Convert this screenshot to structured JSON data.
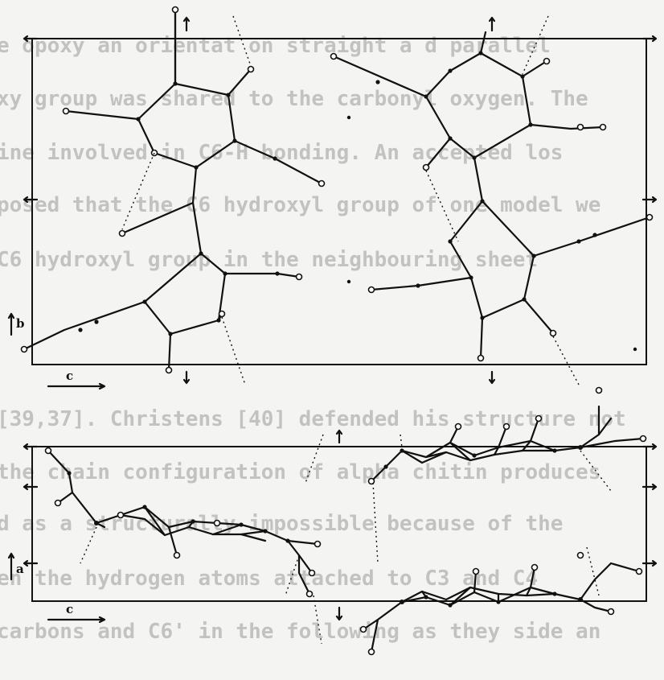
{
  "background_text": [
    "e opoxy  an  orientat  on  straight  a  d  parallel",
    "xy  group  was  shared  to  the  carbonyl  oxygen.  The",
    "ine  involved  in  C6-H  bonding.  An  accepted  los",
    "posed  that  the  C6  hydroxyl  group  of  one  model  we",
    "C6  hydroxyl  group  in  the  neighbouring  sheet",
    "",
    "[39,37].  Christens  [40]  defended  his  structure  not",
    "the  chain  configuration  of  alpha  chitin  produces",
    "d  as  a  structurally  impossible  because  of  the",
    "en  the  hydrogen  atoms  attached  to  C3  and  C4",
    "carbons  and  C6'  in  the  following  as  they  side  an"
  ],
  "panels": {
    "top": {
      "axis_b": "b",
      "axis_c": "c"
    },
    "bottom": {
      "axis_a": "a",
      "axis_c": "c"
    }
  }
}
